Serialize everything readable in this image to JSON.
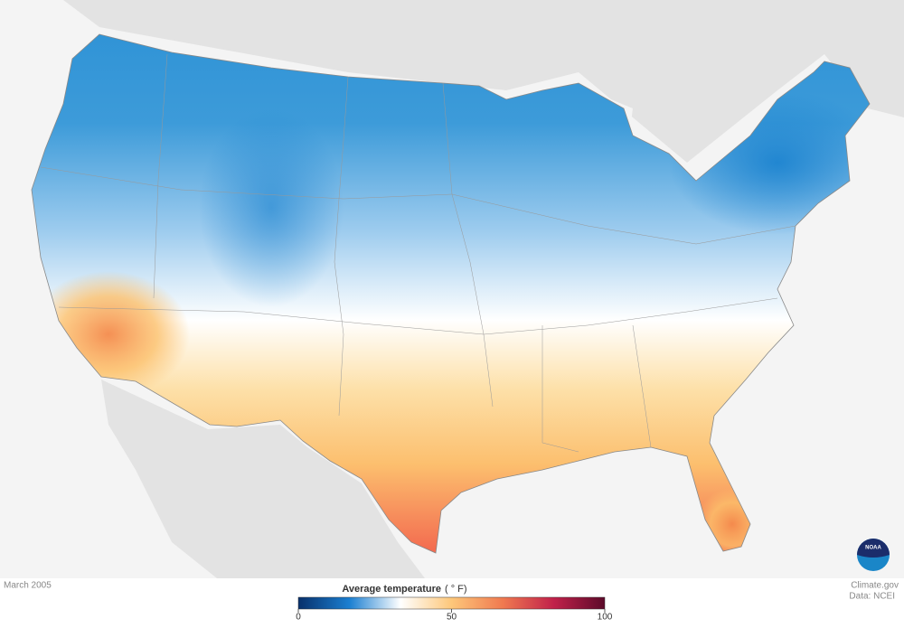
{
  "map": {
    "date": "March 2005",
    "legend": {
      "title": "Average temperature",
      "unit": "( ° F)",
      "lim": [
        0,
        100
      ],
      "ticks": [
        0,
        50,
        100
      ],
      "colors": [
        "#08306b",
        "#1b7fd1",
        "#ffffff",
        "#fdc77a",
        "#f07a50",
        "#c1214a",
        "#5c0a2a"
      ]
    },
    "credits": {
      "site": "Climate.gov",
      "data": "Data: NCEI"
    },
    "logo": "NOAA"
  }
}
